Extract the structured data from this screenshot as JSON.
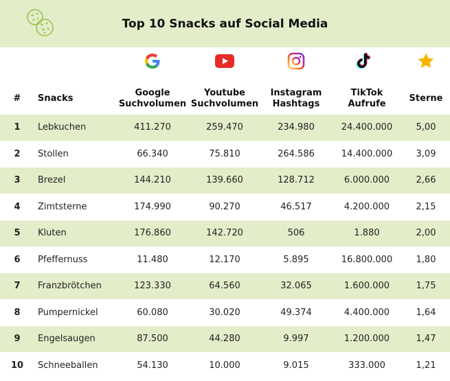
{
  "title": "Top 10 Snacks auf Social Media",
  "icons": {
    "header": "cookie-icon",
    "google": "google-icon",
    "youtube": "youtube-icon",
    "instagram": "instagram-icon",
    "tiktok": "tiktok-icon",
    "stars": "star-icon"
  },
  "colors": {
    "accent": "#e3edc9",
    "cookie": "#9cc24b",
    "star": "#f7b500",
    "youtube": "#e52d27"
  },
  "columns": {
    "rank": "#",
    "snack": "Snacks",
    "google_line1": "Google",
    "google_line2": "Suchvolumen",
    "youtube_line1": "Youtube",
    "youtube_line2": "Suchvolumen",
    "instagram_line1": "Instagram",
    "instagram_line2": "Hashtags",
    "tiktok_line1": "TikTok",
    "tiktok_line2": "Aufrufe",
    "stars": "Sterne"
  },
  "rows": [
    {
      "rank": "1",
      "snack": "Lebkuchen",
      "google": "411.270",
      "youtube": "259.470",
      "instagram": "234.980",
      "tiktok": "24.400.000",
      "stars": "5,00"
    },
    {
      "rank": "2",
      "snack": "Stollen",
      "google": "66.340",
      "youtube": "75.810",
      "instagram": "264.586",
      "tiktok": "14.400.000",
      "stars": "3,09"
    },
    {
      "rank": "3",
      "snack": "Brezel",
      "google": "144.210",
      "youtube": "139.660",
      "instagram": "128.712",
      "tiktok": "6.000.000",
      "stars": "2,66"
    },
    {
      "rank": "4",
      "snack": "Zimtsterne",
      "google": "174.990",
      "youtube": "90.270",
      "instagram": "46.517",
      "tiktok": "4.200.000",
      "stars": "2,15"
    },
    {
      "rank": "5",
      "snack": "Kluten",
      "google": "176.860",
      "youtube": "142.720",
      "instagram": "506",
      "tiktok": "1.880",
      "stars": "2,00"
    },
    {
      "rank": "6",
      "snack": "Pfeffernuss",
      "google": "11.480",
      "youtube": "12.170",
      "instagram": "5.895",
      "tiktok": "16.800.000",
      "stars": "1,80"
    },
    {
      "rank": "7",
      "snack": "Franzbrötchen",
      "google": "123.330",
      "youtube": "64.560",
      "instagram": "32.065",
      "tiktok": "1.600.000",
      "stars": "1,75"
    },
    {
      "rank": "8",
      "snack": "Pumpernickel",
      "google": "60.080",
      "youtube": "30.020",
      "instagram": "49.374",
      "tiktok": "4.400.000",
      "stars": "1,64"
    },
    {
      "rank": "9",
      "snack": "Engelsaugen",
      "google": "87.500",
      "youtube": "44.280",
      "instagram": "9.997",
      "tiktok": "1.200.000",
      "stars": "1,47"
    },
    {
      "rank": "10",
      "snack": "Schneeballen",
      "google": "54.130",
      "youtube": "10.000",
      "instagram": "9.015",
      "tiktok": "333.000",
      "stars": "1,21"
    }
  ]
}
